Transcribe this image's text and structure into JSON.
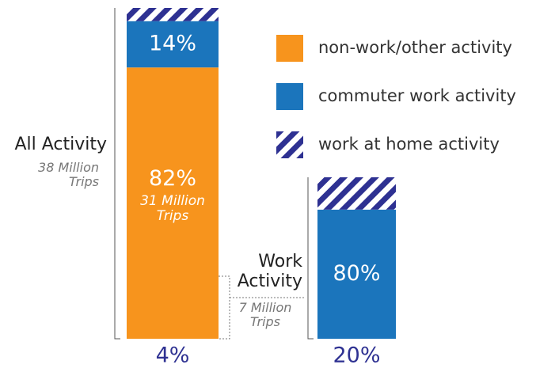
{
  "chart_data": {
    "type": "stacked_bar",
    "categories": [
      "All Activity",
      "Work Activity"
    ],
    "category_subtitles": [
      "38 Million Trips",
      "7 Million Trips"
    ],
    "series": [
      {
        "name": "non-work/other activity",
        "color": "#f7941d",
        "values": [
          82,
          null
        ],
        "value_labels": [
          "82%",
          null
        ],
        "notes": [
          "31 Million Trips",
          null
        ]
      },
      {
        "name": "commuter work activity",
        "color": "#1b75bc",
        "values": [
          14,
          80
        ],
        "value_labels": [
          "14%",
          "80%"
        ]
      },
      {
        "name": "work at home activity",
        "color": "#2e3192",
        "hatched": true,
        "values": [
          4,
          20
        ],
        "value_labels": [
          "4%",
          "20%"
        ]
      }
    ]
  }
}
